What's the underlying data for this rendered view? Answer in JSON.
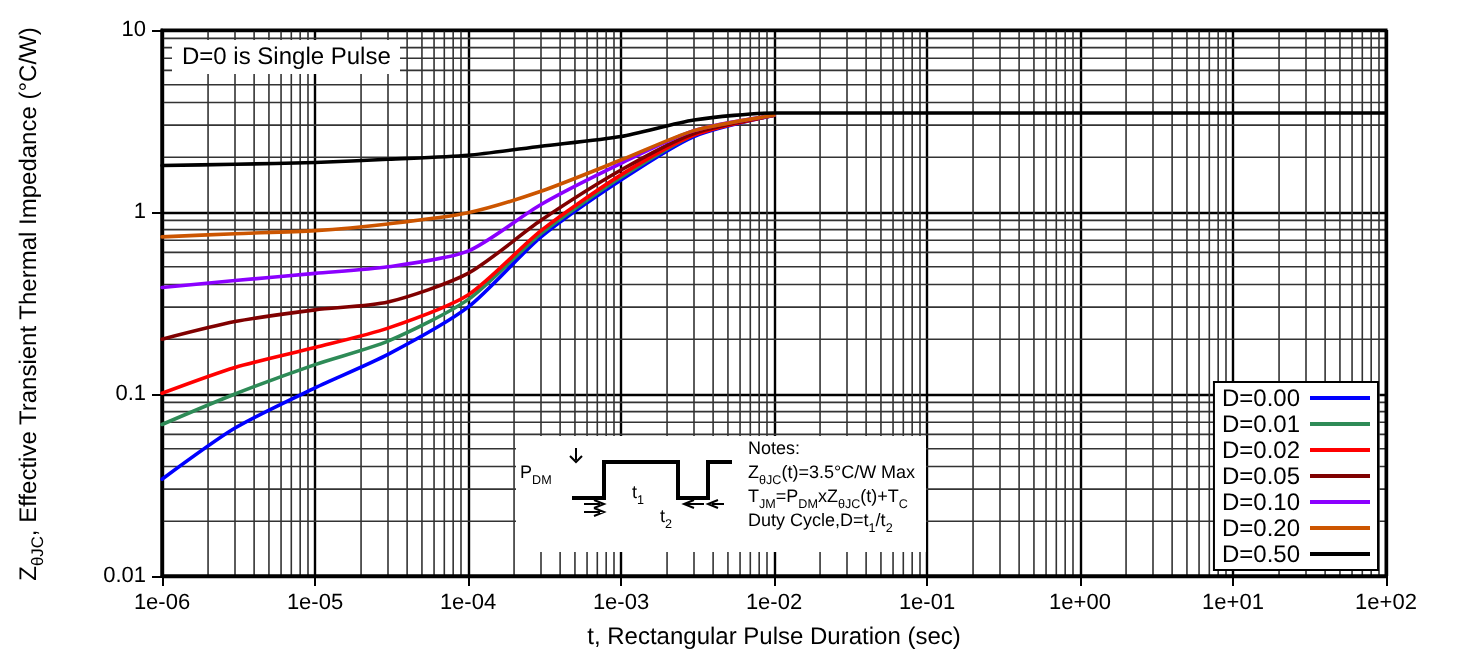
{
  "chart_data": {
    "type": "line",
    "xlabel": "t, Rectangular Pulse Duration (sec)",
    "ylabel": "Z$_{θJC}$, Effective Transient Thermal Impedance (°C/W)",
    "x": [
      1e-06,
      3e-06,
      1e-05,
      3e-05,
      0.0001,
      0.0003,
      0.001,
      0.003,
      0.01,
      0.03,
      0.1,
      1,
      10,
      100
    ],
    "series": [
      {
        "name": "D=0.00",
        "color": "#0000ff",
        "values": [
          0.034,
          0.065,
          0.108,
          0.165,
          0.3,
          0.73,
          1.5,
          2.6,
          3.4,
          null,
          null,
          null,
          null,
          null
        ]
      },
      {
        "name": "D=0.01",
        "color": "#2e8b57",
        "values": [
          0.068,
          0.1,
          0.145,
          0.195,
          0.33,
          0.76,
          1.55,
          2.65,
          3.4,
          null,
          null,
          null,
          null,
          null
        ]
      },
      {
        "name": "D=0.02",
        "color": "#ff0000",
        "values": [
          0.101,
          0.14,
          0.18,
          0.23,
          0.35,
          0.79,
          1.6,
          2.65,
          3.4,
          null,
          null,
          null,
          null,
          null
        ]
      },
      {
        "name": "D=0.05",
        "color": "#800000",
        "values": [
          0.2,
          0.25,
          0.29,
          0.32,
          0.46,
          0.9,
          1.7,
          2.7,
          3.4,
          null,
          null,
          null,
          null,
          null
        ]
      },
      {
        "name": "D=0.10",
        "color": "#8b00ff",
        "values": [
          0.385,
          0.42,
          0.46,
          0.5,
          0.61,
          1.1,
          1.85,
          2.8,
          3.4,
          null,
          null,
          null,
          null,
          null
        ]
      },
      {
        "name": "D=0.20",
        "color": "#cc5500",
        "values": [
          0.73,
          0.76,
          0.79,
          0.86,
          0.99,
          1.3,
          1.93,
          2.8,
          3.4,
          null,
          null,
          null,
          null,
          null
        ]
      },
      {
        "name": "D=0.50",
        "color": "#000000",
        "values": [
          1.8,
          1.83,
          1.87,
          1.95,
          2.05,
          2.3,
          2.6,
          3.2,
          3.5,
          3.5,
          3.5,
          3.5,
          3.5,
          3.5
        ]
      }
    ],
    "xlim": [
      1e-06,
      100
    ],
    "xticks": [
      {
        "value": 1e-06,
        "label": "1e-06"
      },
      {
        "value": 1e-05,
        "label": "1e-05"
      },
      {
        "value": 0.0001,
        "label": "1e-04"
      },
      {
        "value": 0.001,
        "label": "1e-03"
      },
      {
        "value": 0.01,
        "label": "1e-02"
      },
      {
        "value": 0.1,
        "label": "1e-01"
      },
      {
        "value": 1,
        "label": "1e+00"
      },
      {
        "value": 10,
        "label": "1e+01"
      },
      {
        "value": 100,
        "label": "1e+02"
      }
    ],
    "ylim": [
      0.01,
      10
    ],
    "yticks": [
      0.01,
      0.1,
      1,
      10
    ],
    "log": "xy",
    "grid": true,
    "legend": "bottom right",
    "marker": "none",
    "line_style": "solid",
    "annotations": [
      "D=0 is Single Pulse",
      "Notes:",
      "Z$_{θJC}$(t)=3.5°C/W Max",
      "T$_{JM}$=P$_{DM}$xZ$_{θJC}$(t)+T$_{C}$",
      "Duty Cycle,D=t$_{1}$/t$_{2}$",
      "P$_{DM}$",
      "t$_{1}$",
      "t$_{2}$"
    ]
  }
}
